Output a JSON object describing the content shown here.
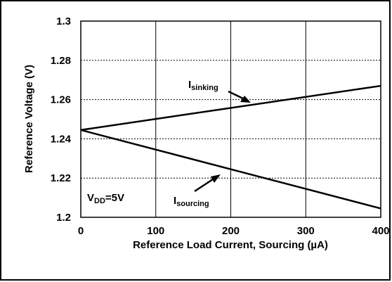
{
  "chart_data": {
    "type": "line",
    "xlabel": "Reference Load Current, Sourcing (µA)",
    "ylabel": "Reference Voltage (V)",
    "xlim": [
      0,
      400
    ],
    "ylim": [
      1.2,
      1.3
    ],
    "x_ticks": [
      "0",
      "100",
      "200",
      "300",
      "400"
    ],
    "y_ticks": [
      "1.2",
      "1.22",
      "1.24",
      "1.26",
      "1.28",
      "1.3"
    ],
    "grid": true,
    "series": [
      {
        "name": "sinking",
        "x": [
          0,
          400
        ],
        "y": [
          1.2445,
          1.267
        ]
      },
      {
        "name": "sourcing",
        "x": [
          0,
          400
        ],
        "y": [
          1.2445,
          1.2045
        ]
      }
    ],
    "annotations": [
      {
        "main": "I",
        "sub": "sinking",
        "arrow_to": [
          220,
          1.2585
        ]
      },
      {
        "main": "I",
        "sub": "sourcing",
        "arrow_to": [
          200,
          1.2245
        ]
      },
      {
        "main": "V",
        "sub": "DD",
        "suffix": "=5V"
      }
    ]
  }
}
